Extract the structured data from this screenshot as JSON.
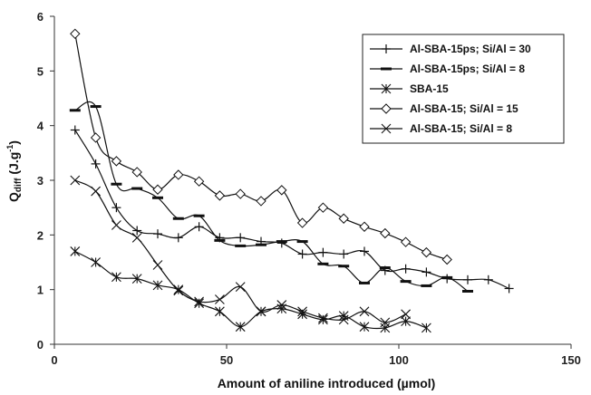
{
  "chart_data": {
    "type": "line",
    "xlabel": "Amount of aniline introduced (µmol)",
    "ylabel": {
      "main": "Q",
      "sub": "diff",
      "unit_prefix": " (J.g",
      "unit_sup": "-1",
      "unit_suffix": ")"
    },
    "xlim": [
      0,
      150
    ],
    "ylim": [
      0,
      6
    ],
    "xticks": [
      0,
      50,
      100,
      150
    ],
    "yticks": [
      0,
      1,
      2,
      3,
      4,
      5,
      6
    ],
    "grid": false,
    "legend_position": "top-right",
    "line_color": "#111111",
    "series": [
      {
        "name": "Al-SBA-15ps; Si/Al = 30",
        "marker": "plus",
        "x": [
          6,
          12,
          18,
          24,
          30,
          36,
          42,
          48,
          54,
          60,
          66,
          72,
          78,
          84,
          90,
          96,
          102,
          108,
          114,
          120,
          126,
          132
        ],
        "y": [
          3.92,
          3.3,
          2.5,
          2.08,
          2.02,
          1.95,
          2.15,
          1.95,
          1.95,
          1.88,
          1.85,
          1.65,
          1.68,
          1.65,
          1.7,
          1.35,
          1.38,
          1.32,
          1.2,
          1.18,
          1.18,
          1.02
        ]
      },
      {
        "name": "Al-SBA-15ps; Si/Al = 8",
        "marker": "dash",
        "x": [
          6,
          12,
          18,
          24,
          30,
          36,
          42,
          48,
          54,
          60,
          66,
          72,
          78,
          84,
          90,
          96,
          102,
          108,
          114,
          120
        ],
        "y": [
          4.28,
          4.35,
          2.93,
          2.85,
          2.68,
          2.3,
          2.35,
          1.9,
          1.8,
          1.82,
          1.88,
          1.88,
          1.47,
          1.43,
          1.12,
          1.4,
          1.15,
          1.07,
          1.22,
          0.97
        ]
      },
      {
        "name": "SBA-15",
        "marker": "asterisk",
        "x": [
          6,
          12,
          18,
          24,
          30,
          36,
          42,
          48,
          54,
          60,
          66,
          72,
          78,
          84,
          90,
          96,
          102,
          108
        ],
        "y": [
          1.7,
          1.5,
          1.23,
          1.2,
          1.08,
          1.0,
          0.75,
          0.6,
          0.32,
          0.6,
          0.65,
          0.55,
          0.45,
          0.52,
          0.32,
          0.3,
          0.42,
          0.3
        ]
      },
      {
        "name": "Al-SBA-15; Si/Al = 15",
        "marker": "diamond",
        "x": [
          6,
          12,
          18,
          24,
          30,
          36,
          42,
          48,
          54,
          60,
          66,
          72,
          78,
          84,
          90,
          96,
          102,
          108,
          114
        ],
        "y": [
          5.68,
          3.78,
          3.35,
          3.15,
          2.83,
          3.1,
          2.98,
          2.72,
          2.75,
          2.62,
          2.82,
          2.22,
          2.5,
          2.3,
          2.15,
          2.03,
          1.87,
          1.68,
          1.55
        ]
      },
      {
        "name": "Al-SBA-15; Si/Al = 8",
        "marker": "cross",
        "x": [
          6,
          12,
          18,
          24,
          30,
          36,
          42,
          48,
          54,
          60,
          66,
          72,
          78,
          84,
          90,
          96,
          102
        ],
        "y": [
          3.0,
          2.8,
          2.18,
          1.95,
          1.45,
          0.98,
          0.78,
          0.82,
          1.05,
          0.6,
          0.72,
          0.6,
          0.48,
          0.45,
          0.6,
          0.4,
          0.55
        ]
      }
    ]
  }
}
